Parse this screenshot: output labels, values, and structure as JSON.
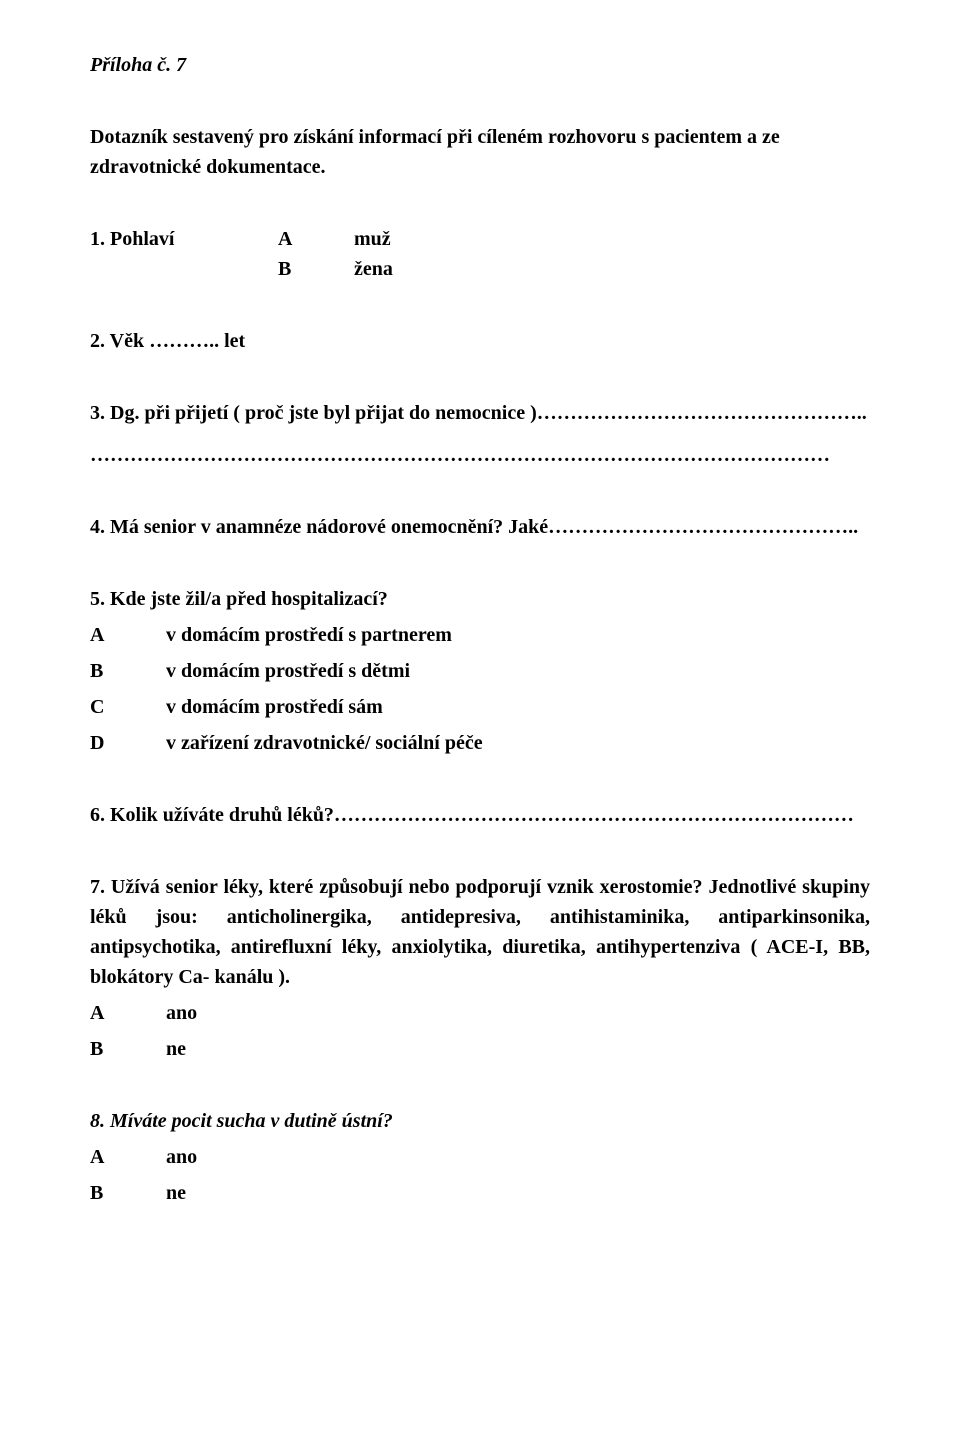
{
  "title": "Příloha č. 7",
  "intro": "Dotazník sestavený pro získání informací při cíleném rozhovoru s pacientem a ze zdravotnické dokumentace.",
  "q1": {
    "num_label": "1. Pohlaví",
    "options": [
      {
        "letter": "A",
        "text": "muž"
      },
      {
        "letter": "B",
        "text": "žena"
      }
    ]
  },
  "q2": "2. Věk ……….. let",
  "q3": "3. Dg. při přijetí ( proč jste byl přijat do nemocnice )…………………………………………..",
  "q3_dots": "…………………………………………………………………………………………………",
  "q4": "4. Má senior v anamnéze nádorové onemocnění? Jaké………………………………………..",
  "q5": "5. Kde jste žil/a před hospitalizací?",
  "q5_options": [
    {
      "letter": "A",
      "text": "v domácím prostředí s partnerem"
    },
    {
      "letter": "B",
      "text": "v domácím prostředí s dětmi"
    },
    {
      "letter": "C",
      "text": "v domácím prostředí sám"
    },
    {
      "letter": "D",
      "text": "v zařízení zdravotnické/ sociální péče"
    }
  ],
  "q6": "6. Kolik užíváte druhů léků?……………………………………………………………………",
  "q7": "7. Užívá senior léky, které způsobují nebo podporují vznik xerostomie? Jednotlivé skupiny léků jsou: anticholinergika, antidepresiva, antihistaminika, antiparkinsonika, antipsychotika, antirefluxní léky, anxiolytika, diuretika, antihypertenziva ( ACE-I, BB, blokátory Ca- kanálu ).",
  "q7_options": [
    {
      "letter": "A",
      "text": "ano"
    },
    {
      "letter": "B",
      "text": "ne"
    }
  ],
  "q8": "8. Míváte pocit sucha v dutině ústní?",
  "q8_options": [
    {
      "letter": "A",
      "text": "ano"
    },
    {
      "letter": "B",
      "text": "ne"
    }
  ]
}
